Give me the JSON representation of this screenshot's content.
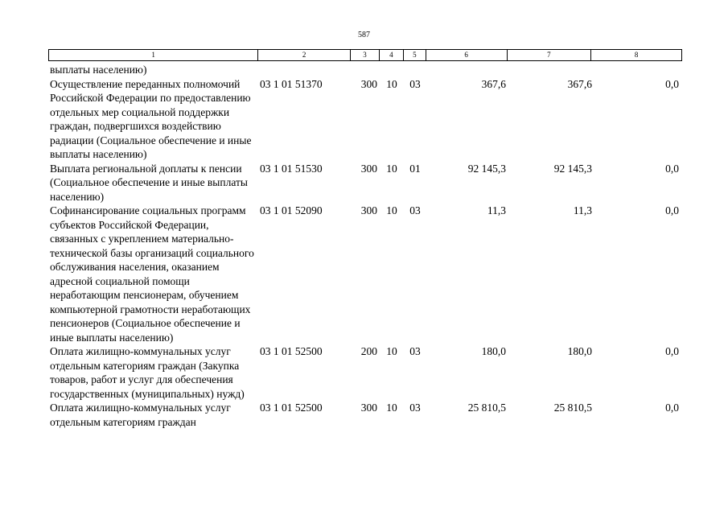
{
  "page_number": "587",
  "header": [
    "1",
    "2",
    "3",
    "4",
    "5",
    "6",
    "7",
    "8"
  ],
  "rows": [
    {
      "name": "выплаты населению)",
      "code": "",
      "vr": "",
      "rz": "",
      "pr": "",
      "v6": "",
      "v7": "",
      "v8": ""
    },
    {
      "name": "Осуществление переданных полномочий Российской Федерации по предоставлению отдельных мер социальной поддержки граждан, подвергшихся воздействию радиации (Социальное обеспечение и иные выплаты населению)",
      "code": "03 1 01 51370",
      "vr": "300",
      "rz": "10",
      "pr": "03",
      "v6": "367,6",
      "v7": "367,6",
      "v8": "0,0"
    },
    {
      "name": "Выплата региональной доплаты к пенсии (Социальное обеспечение и иные выплаты населению)",
      "code": "03 1 01 51530",
      "vr": "300",
      "rz": "10",
      "pr": "01",
      "v6": "92 145,3",
      "v7": "92 145,3",
      "v8": "0,0"
    },
    {
      "name": "Софинансирование социальных программ субъектов Российской Федерации, связанных с укреплением материально-технической базы организаций социального обслуживания населения, оказанием адресной социальной помощи неработающим пенсионерам, обучением компьютерной грамотности неработающих пенсионеров (Социальное обеспечение и иные выплаты населению)",
      "code": "03 1 01 52090",
      "vr": "300",
      "rz": "10",
      "pr": "03",
      "v6": "11,3",
      "v7": "11,3",
      "v8": "0,0"
    },
    {
      "name": "Оплата жилищно-коммунальных услуг отдельным категориям граждан (Закупка товаров, работ и услуг для обеспечения государственных (муниципальных) нужд)",
      "code": "03 1 01 52500",
      "vr": "200",
      "rz": "10",
      "pr": "03",
      "v6": "180,0",
      "v7": "180,0",
      "v8": "0,0"
    },
    {
      "name": "Оплата жилищно-коммунальных услуг отдельным категориям граждан",
      "code": "03 1 01 52500",
      "vr": "300",
      "rz": "10",
      "pr": "03",
      "v6": "25 810,5",
      "v7": "25 810,5",
      "v8": "0,0"
    }
  ]
}
